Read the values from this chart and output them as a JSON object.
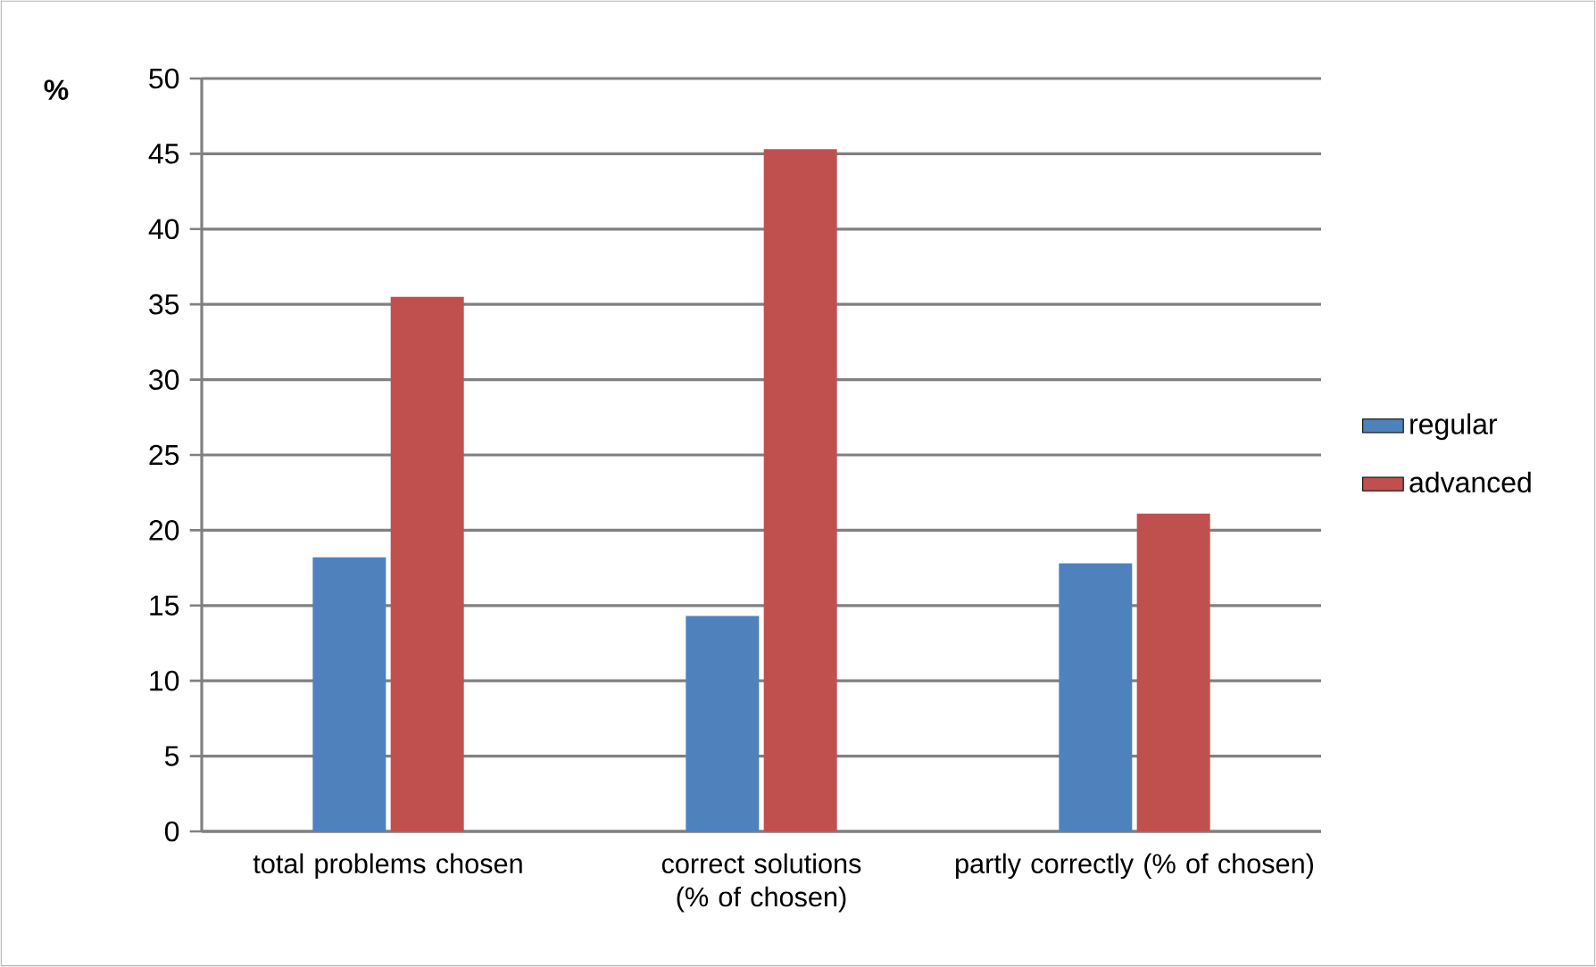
{
  "chart_data": {
    "type": "bar",
    "ylabel": "%",
    "categories": [
      "total problems chosen",
      "correct solutions (% of chosen)",
      "partly correctly (% of chosen)"
    ],
    "series": [
      {
        "name": "regular",
        "color": "#4f81bd",
        "values": [
          18.2,
          14.3,
          17.8
        ]
      },
      {
        "name": "advanced",
        "color": "#c0504d",
        "values": [
          35.5,
          45.3,
          21.1
        ]
      }
    ],
    "ylim": [
      0,
      50
    ],
    "yticks": [
      0,
      5,
      10,
      15,
      20,
      25,
      30,
      35,
      40,
      45,
      50
    ],
    "grid": "y",
    "legend": "right"
  }
}
